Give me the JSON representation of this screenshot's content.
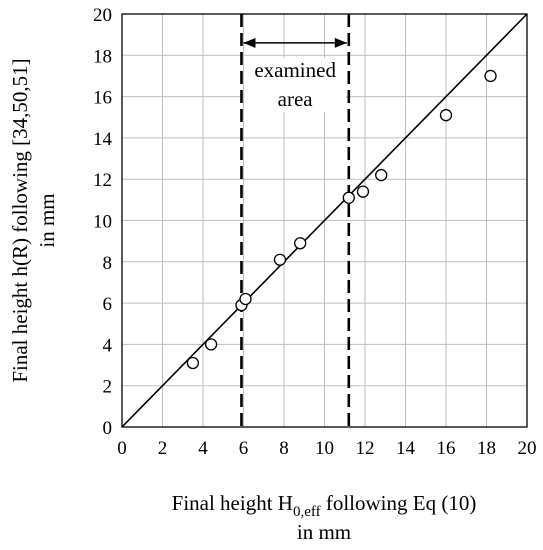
{
  "chart_data": {
    "type": "scatter",
    "xlabel_main": "Final height H",
    "xlabel_sub": "0,eff",
    "xlabel_rest": " following Eq (10)",
    "xlabel_line2": "in mm",
    "ylabel_line1": "Final height h(R) following [34,50,51]",
    "ylabel_line2": "in mm",
    "xlim": [
      0,
      20
    ],
    "ylim": [
      0,
      20
    ],
    "x_ticks": [
      "0",
      "2",
      "4",
      "6",
      "8",
      "10",
      "12",
      "14",
      "16",
      "18",
      "20"
    ],
    "y_ticks": [
      "0",
      "2",
      "4",
      "6",
      "8",
      "10",
      "12",
      "14",
      "16",
      "18",
      "20"
    ],
    "grid": true,
    "series": [
      {
        "marker": "open-circle",
        "points": [
          {
            "x": 3.5,
            "y": 3.1
          },
          {
            "x": 4.4,
            "y": 4.0
          },
          {
            "x": 5.9,
            "y": 5.9
          },
          {
            "x": 6.1,
            "y": 6.2
          },
          {
            "x": 7.8,
            "y": 8.1
          },
          {
            "x": 8.8,
            "y": 8.9
          },
          {
            "x": 11.2,
            "y": 11.1
          },
          {
            "x": 11.9,
            "y": 11.4
          },
          {
            "x": 12.8,
            "y": 12.2
          },
          {
            "x": 16.0,
            "y": 15.1
          },
          {
            "x": 18.2,
            "y": 17.0
          }
        ]
      }
    ],
    "reference_line": {
      "from": [
        0,
        0
      ],
      "to": [
        20,
        20
      ]
    },
    "vertical_lines": [
      5.9,
      11.2
    ],
    "annotation": {
      "line1": "examined",
      "line2": "area",
      "arrow_from": 5.9,
      "arrow_to": 11.2,
      "arrow_y": 18.6
    }
  }
}
